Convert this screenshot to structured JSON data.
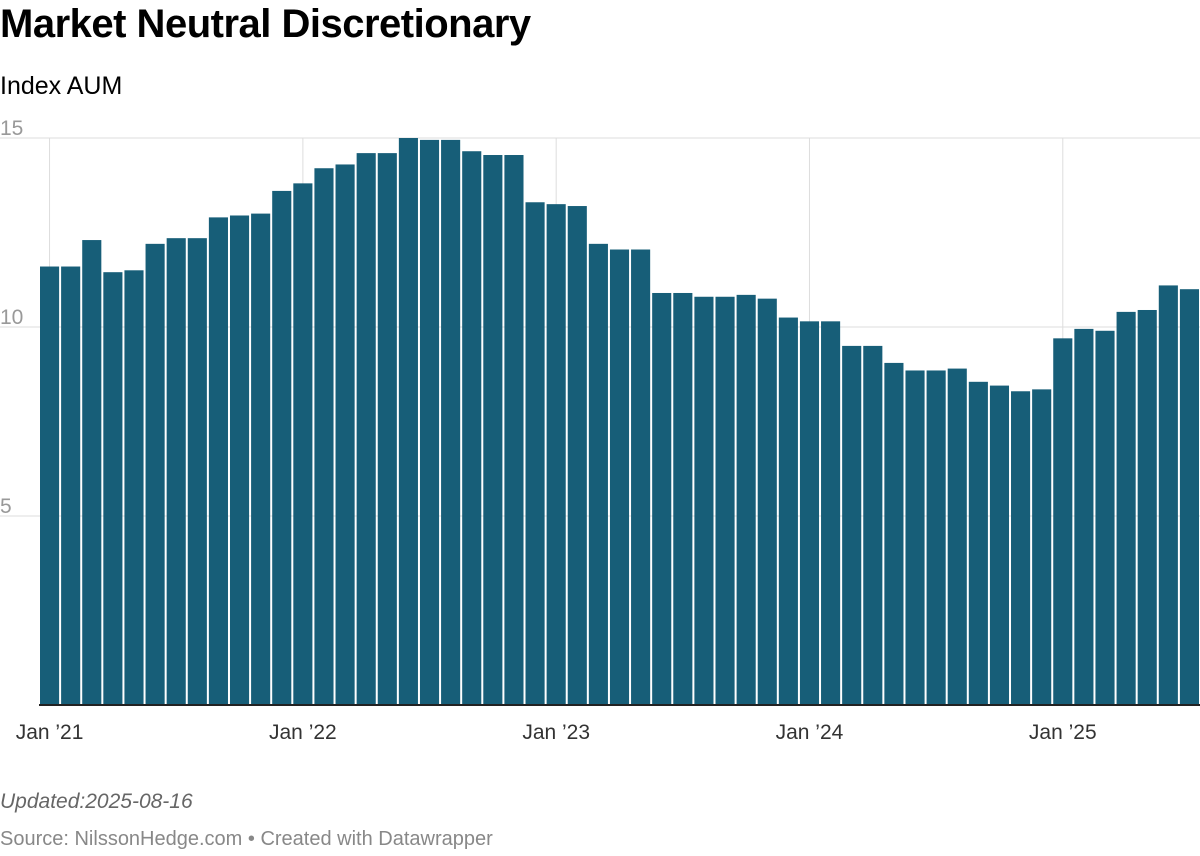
{
  "header": {
    "title": "Market Neutral Discretionary",
    "subtitle": "Index AUM"
  },
  "footer": {
    "updated": "Updated:2025-08-16",
    "source": "Source: NilssonHedge.com • Created with Datawrapper"
  },
  "colors": {
    "bar": "#175e78",
    "grid": "#dddddd",
    "axis": "#222222",
    "ytick": "#999999",
    "xtick": "#333333"
  },
  "chart_data": {
    "type": "bar",
    "title": "Market Neutral Discretionary",
    "subtitle": "Index AUM",
    "xlabel": "",
    "ylabel": "",
    "ylim": [
      0,
      15
    ],
    "yticks": [
      5,
      10,
      15
    ],
    "grid": "both",
    "legend": "none",
    "xtick_labels": [
      {
        "label": "Jan ’21",
        "date": "2021-01"
      },
      {
        "label": "Jan ’22",
        "date": "2022-01"
      },
      {
        "label": "Jan ’23",
        "date": "2023-01"
      },
      {
        "label": "Jan ’24",
        "date": "2024-01"
      },
      {
        "label": "Jan ’25",
        "date": "2025-01"
      }
    ],
    "categories": [
      "2021-01",
      "2021-02",
      "2021-03",
      "2021-04",
      "2021-05",
      "2021-06",
      "2021-07",
      "2021-08",
      "2021-09",
      "2021-10",
      "2021-11",
      "2021-12",
      "2022-01",
      "2022-02",
      "2022-03",
      "2022-04",
      "2022-05",
      "2022-06",
      "2022-07",
      "2022-08",
      "2022-09",
      "2022-10",
      "2022-11",
      "2022-12",
      "2023-01",
      "2023-02",
      "2023-03",
      "2023-04",
      "2023-05",
      "2023-06",
      "2023-07",
      "2023-08",
      "2023-09",
      "2023-10",
      "2023-11",
      "2023-12",
      "2024-01",
      "2024-02",
      "2024-03",
      "2024-04",
      "2024-05",
      "2024-06",
      "2024-07",
      "2024-08",
      "2024-09",
      "2024-10",
      "2024-11",
      "2024-12",
      "2025-01",
      "2025-02",
      "2025-03",
      "2025-04",
      "2025-05",
      "2025-06",
      "2025-07"
    ],
    "values": [
      11.6,
      11.6,
      12.3,
      11.45,
      11.5,
      12.2,
      12.35,
      12.35,
      12.9,
      12.95,
      13.0,
      13.6,
      13.8,
      14.2,
      14.3,
      14.6,
      14.6,
      15.0,
      14.95,
      14.95,
      14.65,
      14.55,
      14.55,
      13.3,
      13.25,
      13.2,
      12.2,
      12.05,
      12.05,
      10.9,
      10.9,
      10.8,
      10.8,
      10.85,
      10.75,
      10.25,
      10.15,
      10.15,
      9.5,
      9.5,
      9.05,
      8.85,
      8.85,
      8.9,
      8.55,
      8.45,
      8.3,
      8.35,
      9.7,
      9.95,
      9.9,
      10.4,
      10.45,
      11.1,
      11.0
    ]
  }
}
